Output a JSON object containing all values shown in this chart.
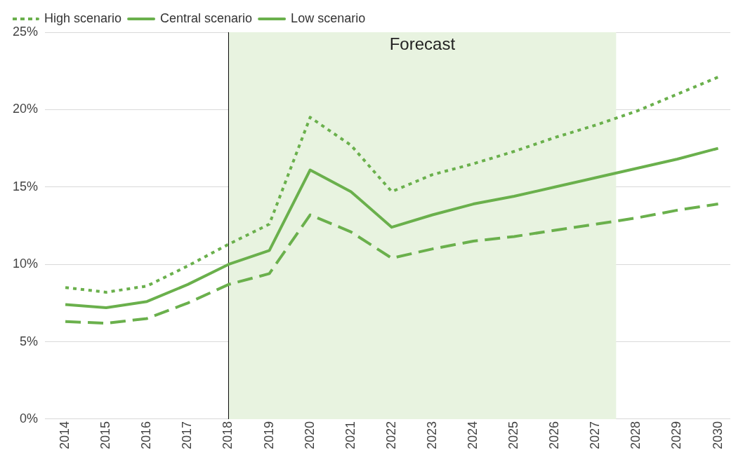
{
  "chart_data": {
    "type": "line",
    "x": [
      2014,
      2015,
      2016,
      2017,
      2018,
      2019,
      2020,
      2021,
      2022,
      2023,
      2024,
      2025,
      2026,
      2027,
      2028,
      2029,
      2030
    ],
    "series": [
      {
        "name": "High scenario",
        "color": "#6ab04c",
        "line_style": "dotted",
        "values": [
          8.5,
          8.2,
          8.6,
          9.9,
          11.3,
          12.6,
          19.5,
          17.7,
          14.7,
          15.8,
          16.5,
          17.3,
          18.2,
          19.0,
          19.9,
          21.0,
          22.1
        ]
      },
      {
        "name": "Central scenario",
        "color": "#6ab04c",
        "line_style": "solid",
        "values": [
          7.4,
          7.2,
          7.6,
          8.7,
          10.0,
          10.9,
          16.1,
          14.7,
          12.4,
          13.2,
          13.9,
          14.4,
          15.0,
          15.6,
          16.2,
          16.8,
          17.5
        ]
      },
      {
        "name": "Low scenario",
        "color": "#6ab04c",
        "line_style": "dashed",
        "values": [
          6.3,
          6.2,
          6.5,
          7.5,
          8.7,
          9.4,
          13.2,
          12.1,
          10.4,
          11.0,
          11.5,
          11.8,
          12.2,
          12.6,
          13.0,
          13.5,
          13.9
        ]
      }
    ],
    "xlim": [
      2013.5,
      2030.3
    ],
    "xticks": [
      2014,
      2015,
      2016,
      2017,
      2018,
      2019,
      2020,
      2021,
      2022,
      2023,
      2024,
      2025,
      2026,
      2027,
      2028,
      2029,
      2030
    ],
    "ylim": [
      0,
      25
    ],
    "yticks": [
      {
        "value": 0,
        "label": "0%"
      },
      {
        "value": 5,
        "label": "5%"
      },
      {
        "value": 10,
        "label": "10%"
      },
      {
        "value": 15,
        "label": "15%"
      },
      {
        "value": 20,
        "label": "20%"
      },
      {
        "value": 25,
        "label": "25%"
      }
    ],
    "bands": [
      {
        "axis": "x",
        "from": 2018,
        "to": 2027.5,
        "label": "Forecast",
        "color": "#e8f3e0"
      }
    ],
    "ref_lines": [
      {
        "axis": "x",
        "value": 2018,
        "color": "#000000"
      }
    ],
    "grid": "y",
    "legend": "top left",
    "marker": "none"
  }
}
